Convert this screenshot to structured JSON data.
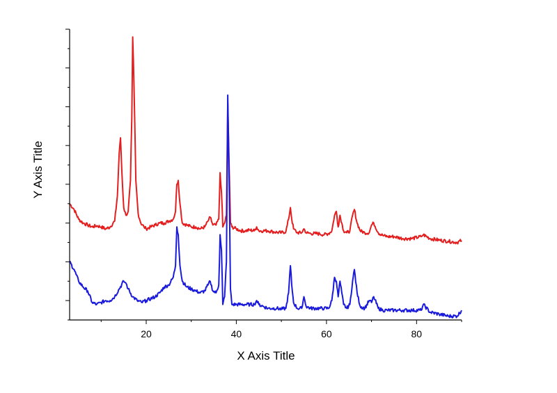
{
  "chart_data": {
    "type": "line",
    "title": "",
    "xlabel": "X Axis Title",
    "ylabel": "Y Axis Title",
    "xlim": [
      3,
      90
    ],
    "ylim": [
      0,
      75
    ],
    "x_ticks": [
      20,
      40,
      60,
      80
    ],
    "x_tick_labels": [
      "20",
      "40",
      "60",
      "80"
    ],
    "y_tick_labels_shown": false,
    "grid": false,
    "legend": "none",
    "series": [
      {
        "color": "#e41e1e",
        "x": [
          3,
          4,
          5,
          6,
          7,
          8,
          9,
          10,
          11,
          12,
          13,
          13.6,
          14,
          14.3,
          14.6,
          15,
          15.5,
          16,
          16.5,
          16.8,
          17,
          17.3,
          17.7,
          18.2,
          18.8,
          19.5,
          20,
          21,
          22,
          23,
          24,
          25,
          26,
          26.5,
          26.8,
          27.1,
          27.5,
          28,
          29,
          30,
          31,
          32,
          33,
          33.7,
          34.2,
          34.8,
          35.5,
          36.1,
          36.4,
          36.7,
          37,
          37.4,
          37.8,
          38.1,
          38.4,
          38.7,
          39,
          40,
          41,
          42,
          43,
          44,
          44.5,
          45,
          46,
          47,
          48,
          49,
          50,
          51,
          51.6,
          52,
          52.3,
          52.7,
          53.5,
          54.5,
          55,
          55.5,
          56.5,
          57.5,
          58.5,
          59.5,
          60.5,
          61.2,
          61.8,
          62.2,
          62.6,
          63,
          63.4,
          63.8,
          64.5,
          65.2,
          65.8,
          66.2,
          66.8,
          67.5,
          68.5,
          69.5,
          70,
          70.5,
          71.5,
          72.5,
          73.5,
          75,
          77,
          79,
          81,
          81.5,
          83,
          85,
          87,
          89,
          90
        ],
        "y": [
          30,
          28.5,
          26,
          25,
          24.5,
          24,
          24.3,
          24,
          23.5,
          24,
          25.5,
          32,
          43,
          47,
          38,
          29,
          27,
          28,
          36,
          52,
          73,
          60,
          36,
          27.5,
          25,
          24,
          23.5,
          24,
          24.5,
          25,
          25,
          25.5,
          26,
          28,
          35,
          36,
          30,
          25,
          24.5,
          24,
          24,
          23.5,
          24,
          25.5,
          26.5,
          24.5,
          24.5,
          26,
          38,
          33,
          24,
          25,
          27,
          56,
          40,
          25,
          24,
          23.5,
          23,
          23,
          23.2,
          23,
          24,
          23,
          23,
          23,
          22.8,
          22.6,
          22.5,
          22.8,
          26,
          29,
          26,
          23.5,
          22.5,
          22.5,
          23.5,
          22.5,
          22.3,
          22.3,
          22.2,
          22,
          22.3,
          23,
          27,
          28,
          24,
          27,
          25,
          23,
          22.5,
          23,
          27,
          28.5,
          25,
          23,
          22.5,
          22.5,
          24.5,
          25,
          22.5,
          21.8,
          21.5,
          21.5,
          21,
          21,
          21.5,
          22,
          21,
          20.6,
          20.3,
          20,
          20.5
        ]
      },
      {
        "color": "#1a1adc",
        "x": [
          3,
          4,
          5,
          6,
          7,
          8,
          9,
          10,
          11,
          12,
          13,
          14,
          15,
          15.5,
          16,
          17,
          18,
          19,
          20,
          21,
          22,
          23,
          24,
          25,
          26,
          26.5,
          26.8,
          27.1,
          27.5,
          28,
          29,
          30,
          31,
          32,
          33,
          33.7,
          34.2,
          34.8,
          35.5,
          36.1,
          36.4,
          36.7,
          37,
          37.4,
          37.8,
          38.1,
          38.4,
          38.7,
          39,
          40,
          41,
          42,
          43,
          44,
          44.5,
          45,
          46,
          47,
          48,
          49,
          50,
          51,
          51.6,
          52,
          52.3,
          52.7,
          53.5,
          54.5,
          55,
          55.5,
          56.5,
          57.5,
          58.5,
          59.5,
          60.5,
          61.2,
          61.8,
          62.2,
          62.6,
          63,
          63.4,
          63.8,
          64.5,
          65.2,
          65.8,
          66.2,
          66.8,
          67.5,
          68.5,
          69.5,
          70,
          70.5,
          71.5,
          72.5,
          73.5,
          75,
          77,
          79,
          81,
          81.5,
          83,
          85,
          87,
          89,
          90
        ],
        "y": [
          15,
          13,
          10,
          8.5,
          7.5,
          4.5,
          4,
          4.5,
          5,
          5,
          6,
          8,
          10,
          9.5,
          8,
          6,
          5,
          4.5,
          5,
          5.5,
          6,
          7,
          8.5,
          9,
          11,
          14,
          24,
          22,
          14,
          10,
          8.5,
          8,
          7.5,
          7,
          7.5,
          9,
          10,
          7.5,
          7,
          9,
          22,
          18,
          4,
          6,
          15,
          58,
          36,
          8,
          4,
          4,
          4,
          4,
          4,
          4,
          5,
          4,
          3.5,
          3,
          3,
          3,
          2.8,
          3,
          7,
          14,
          9,
          4.5,
          3,
          3,
          6,
          3.5,
          3,
          3,
          3,
          3,
          3,
          5,
          11,
          10,
          6,
          10,
          7,
          4,
          3,
          4,
          10,
          13,
          7,
          3.5,
          3,
          5,
          4.5,
          6,
          3,
          2.5,
          2.5,
          2.5,
          2.5,
          2.5,
          2.5,
          4,
          2,
          1.5,
          1,
          1,
          2.5
        ]
      }
    ]
  }
}
